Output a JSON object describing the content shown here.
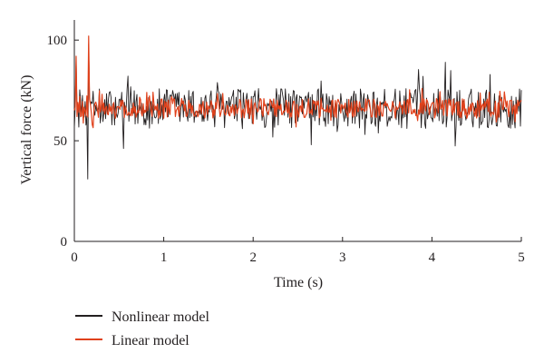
{
  "chart_data": {
    "type": "line",
    "xlabel": "Time (s)",
    "ylabel": "Vertical force (kN)",
    "xlim": [
      0,
      5
    ],
    "ylim": [
      0,
      110
    ],
    "xticks": [
      0,
      1,
      2,
      3,
      4,
      5
    ],
    "yticks": [
      0,
      50,
      100
    ],
    "grid": false,
    "legend_position": "bottom-left",
    "series": [
      {
        "name": "Nonlinear model",
        "color": "#231f20",
        "mean": 66,
        "amplitude": 10,
        "samples": 500,
        "peaks": [
          {
            "x": 0.02,
            "y": 90
          },
          {
            "x": 0.15,
            "y": 31
          },
          {
            "x": 0.16,
            "y": 98
          },
          {
            "x": 4.15,
            "y": 89
          }
        ]
      },
      {
        "name": "Linear model",
        "color": "#e0411b",
        "mean": 66,
        "amplitude": 5,
        "samples": 500,
        "peaks": [
          {
            "x": 0.02,
            "y": 92
          },
          {
            "x": 0.16,
            "y": 102
          },
          {
            "x": 0.2,
            "y": 58
          }
        ]
      }
    ]
  }
}
